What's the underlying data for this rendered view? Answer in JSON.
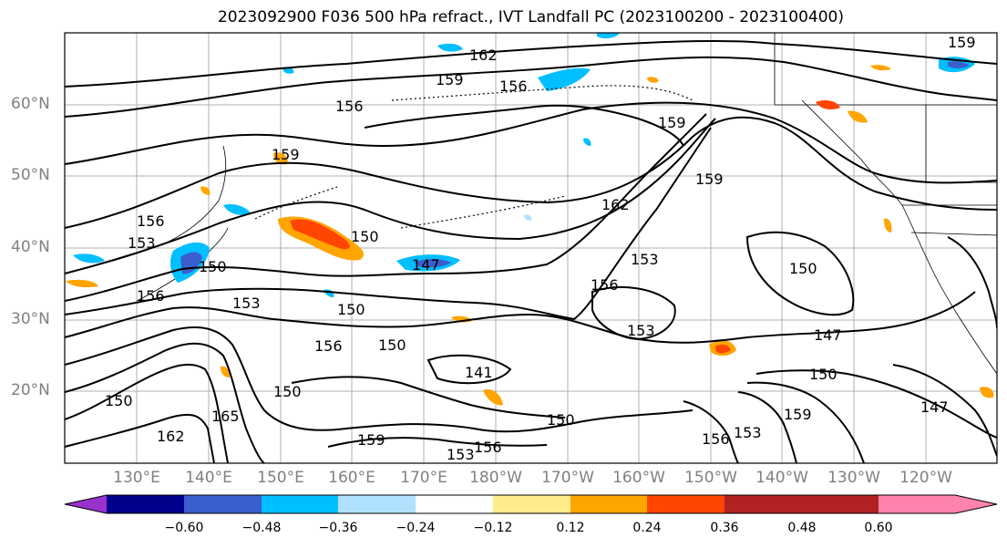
{
  "title": "2023092900 F036 500 hPa refract., IVT Landfall PC (2023100200 - 2023100400)",
  "lat_labels": [
    "60°N",
    "50°N",
    "40°N",
    "30°N",
    "20°N"
  ],
  "lon_labels": [
    "130°E",
    "140°E",
    "150°E",
    "160°E",
    "170°E",
    "180°W",
    "170°W",
    "160°W",
    "150°W",
    "140°W",
    "130°W",
    "120°W"
  ],
  "colorbar": {
    "ticks": [
      "−0.60",
      "−0.48",
      "−0.36",
      "−0.24",
      "−0.12",
      "0.12",
      "0.24",
      "0.36",
      "0.48",
      "0.60"
    ],
    "colors": [
      "#9932cc",
      "#00008b",
      "#3a5fcd",
      "#00bfff",
      "#b0e2ff",
      "#ffffff",
      "#ffec8b",
      "#ffa500",
      "#ff4500",
      "#b22222",
      "#ff83ac"
    ]
  },
  "contour_labels": [
    "162",
    "159",
    "156",
    "156",
    "159",
    "156",
    "153",
    "150",
    "156",
    "153",
    "150",
    "147",
    "150",
    "156",
    "150",
    "165",
    "162",
    "150",
    "159",
    "141",
    "153",
    "156",
    "150",
    "147",
    "150",
    "153",
    "156",
    "159",
    "147",
    "153",
    "159",
    "156",
    "162",
    "150",
    "153",
    "159",
    "159",
    "150"
  ]
}
